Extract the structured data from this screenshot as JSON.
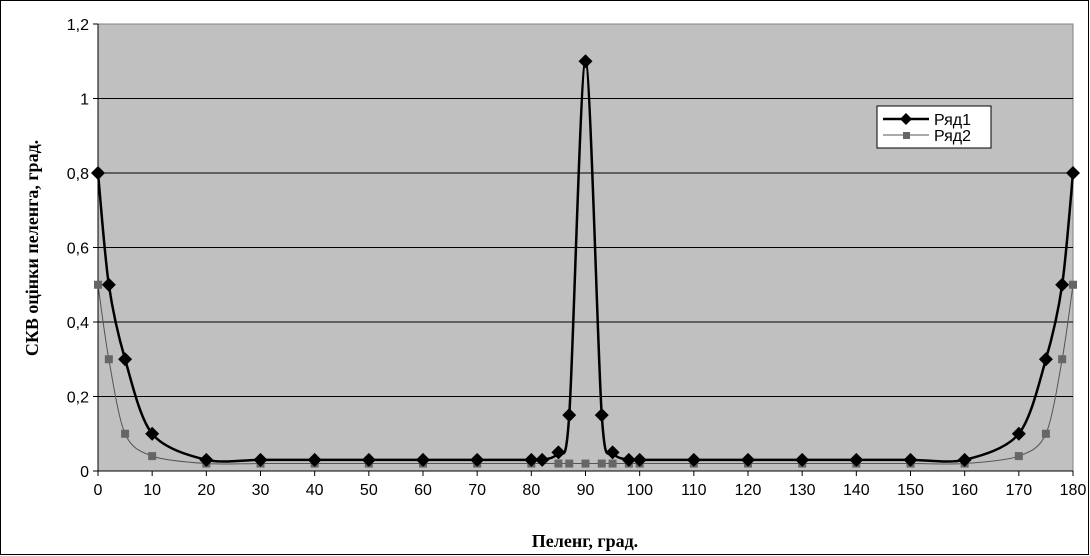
{
  "chart_data": {
    "type": "line",
    "xlabel": "Пеленг, град.",
    "ylabel": "СКВ оцінки пеленга, град.",
    "xlim": [
      0,
      180
    ],
    "ylim": [
      0,
      1.2
    ],
    "x_ticks": [
      "0",
      "10",
      "20",
      "30",
      "40",
      "50",
      "60",
      "70",
      "80",
      "90",
      "100",
      "110",
      "120",
      "130",
      "140",
      "150",
      "160",
      "170",
      "180"
    ],
    "y_ticks": [
      "0",
      "0,2",
      "0,4",
      "0,6",
      "0,8",
      "1",
      "1,2"
    ],
    "grid": "horizontal",
    "legend_position": "top-right",
    "series": [
      {
        "name": "Ряд1",
        "color": "#000000",
        "marker": "diamond",
        "x": [
          0,
          2,
          5,
          10,
          20,
          30,
          40,
          50,
          60,
          70,
          80,
          82,
          85,
          87,
          90,
          93,
          95,
          98,
          100,
          110,
          120,
          130,
          140,
          150,
          160,
          170,
          175,
          178,
          180
        ],
        "values": [
          0.8,
          0.5,
          0.3,
          0.1,
          0.03,
          0.03,
          0.03,
          0.03,
          0.03,
          0.03,
          0.03,
          0.03,
          0.05,
          0.15,
          1.1,
          0.15,
          0.05,
          0.03,
          0.03,
          0.03,
          0.03,
          0.03,
          0.03,
          0.03,
          0.03,
          0.1,
          0.3,
          0.5,
          0.8
        ]
      },
      {
        "name": "Ряд2",
        "color": "#666666",
        "marker": "square",
        "x": [
          0,
          2,
          5,
          10,
          20,
          30,
          40,
          50,
          60,
          70,
          80,
          85,
          87,
          90,
          93,
          95,
          98,
          100,
          110,
          120,
          130,
          140,
          150,
          160,
          170,
          175,
          178,
          180
        ],
        "values": [
          0.5,
          0.3,
          0.1,
          0.04,
          0.02,
          0.02,
          0.02,
          0.02,
          0.02,
          0.02,
          0.02,
          0.02,
          0.02,
          0.02,
          0.02,
          0.02,
          0.02,
          0.02,
          0.02,
          0.02,
          0.02,
          0.02,
          0.02,
          0.02,
          0.04,
          0.1,
          0.3,
          0.5
        ]
      }
    ]
  }
}
